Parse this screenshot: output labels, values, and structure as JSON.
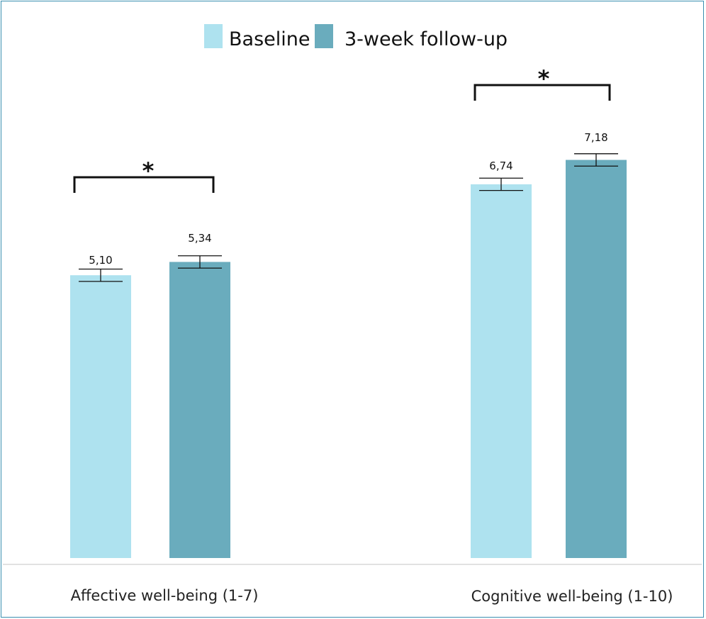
{
  "chart_data": {
    "type": "bar",
    "categories": [
      "Affective well-being (1-7)",
      "Cognitive well-being (1-10)"
    ],
    "series": [
      {
        "name": "Baseline",
        "color": "#aee2ef",
        "values": [
          5.1,
          6.74
        ],
        "labels": [
          "5,10",
          "6,74"
        ],
        "errors": [
          0.12,
          0.12
        ]
      },
      {
        "name": "3-week follow-up",
        "color": "#6aacbd",
        "values": [
          5.34,
          7.18
        ],
        "labels": [
          "5,34",
          "7,18"
        ],
        "errors": [
          0.12,
          0.12
        ]
      }
    ],
    "significance": [
      "*",
      "*"
    ],
    "ylim": [
      0,
      10.2
    ],
    "legend_position": "top-center",
    "grid": false
  }
}
